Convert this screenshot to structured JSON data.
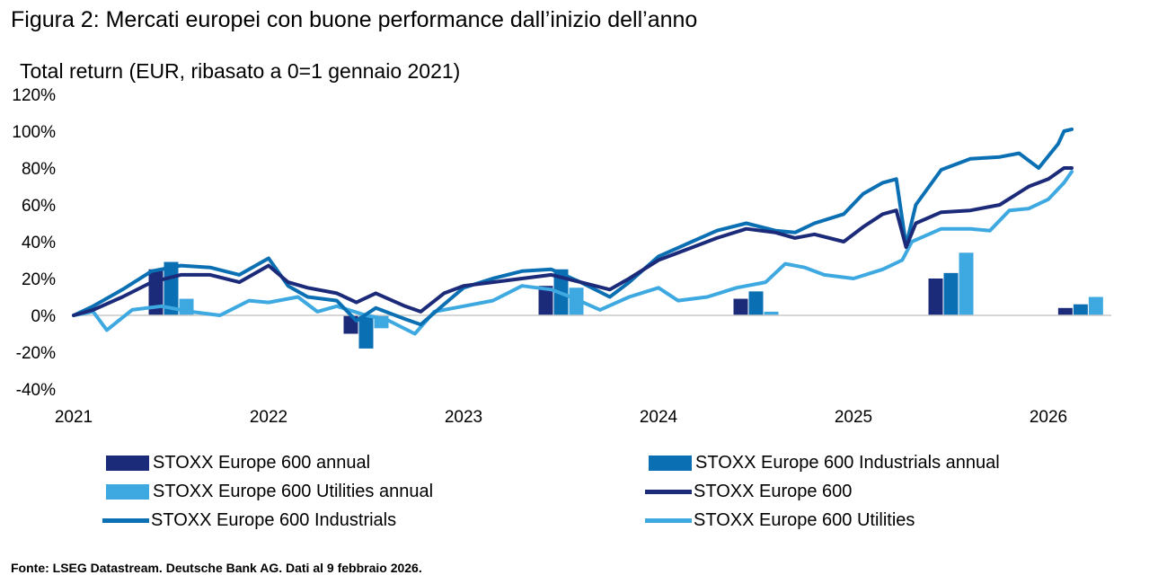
{
  "header": {
    "title": "Figura 2: Mercati europei con buone performance dall’inizio dell’anno",
    "subtitle": "Total return (EUR, ribasato a 0=1 gennaio 2021)"
  },
  "source": "Fonte: LSEG Datastream. Deutsche Bank AG. Dati al 9 febbraio 2026.",
  "colors": {
    "stoxx600": "#1c2a7a",
    "industrials": "#0a6fb3",
    "utilities": "#3ea9e1",
    "axis": "#c8c8c8"
  },
  "chart_data": {
    "type": "line",
    "ylim": [
      -40,
      120
    ],
    "y_ticks": [
      {
        "value": 120,
        "label": "120%"
      },
      {
        "value": 100,
        "label": "100%"
      },
      {
        "value": 80,
        "label": "80%"
      },
      {
        "value": 60,
        "label": "60%"
      },
      {
        "value": 40,
        "label": "40%"
      },
      {
        "value": 20,
        "label": "20%"
      },
      {
        "value": 0,
        "label": "0%"
      },
      {
        "value": -20,
        "label": "-20%"
      },
      {
        "value": -40,
        "label": "-40%"
      }
    ],
    "x_ticks": [
      {
        "value": 2021,
        "label": "2021"
      },
      {
        "value": 2022,
        "label": "2022"
      },
      {
        "value": 2023,
        "label": "2023"
      },
      {
        "value": 2024,
        "label": "2024"
      },
      {
        "value": 2025,
        "label": "2025"
      },
      {
        "value": 2026,
        "label": "2026"
      }
    ],
    "xlim": [
      2021,
      2026.35
    ],
    "bar_series": [
      {
        "name": "STOXX Europe 600 annual",
        "color_key": "stoxx600",
        "values": [
          {
            "year": 2021,
            "value": 25
          },
          {
            "year": 2022,
            "value": -10
          },
          {
            "year": 2023,
            "value": 16
          },
          {
            "year": 2024,
            "value": 9
          },
          {
            "year": 2025,
            "value": 20
          },
          {
            "year": 2026,
            "value": 4
          }
        ]
      },
      {
        "name": "STOXX Europe 600 Industrials annual",
        "color_key": "industrials",
        "values": [
          {
            "year": 2021,
            "value": 29
          },
          {
            "year": 2022,
            "value": -18
          },
          {
            "year": 2023,
            "value": 25
          },
          {
            "year": 2024,
            "value": 13
          },
          {
            "year": 2025,
            "value": 23
          },
          {
            "year": 2026,
            "value": 6
          }
        ]
      },
      {
        "name": "STOXX Europe 600 Utilities annual",
        "color_key": "utilities",
        "values": [
          {
            "year": 2021,
            "value": 9
          },
          {
            "year": 2022,
            "value": -7
          },
          {
            "year": 2023,
            "value": 15
          },
          {
            "year": 2024,
            "value": 2
          },
          {
            "year": 2025,
            "value": 34
          },
          {
            "year": 2026,
            "value": 10
          }
        ]
      }
    ],
    "line_series": [
      {
        "name": "STOXX Europe 600",
        "color_key": "stoxx600",
        "points": [
          [
            2021.0,
            0
          ],
          [
            2021.1,
            3
          ],
          [
            2021.25,
            10
          ],
          [
            2021.4,
            18
          ],
          [
            2021.55,
            22
          ],
          [
            2021.7,
            22
          ],
          [
            2021.85,
            18
          ],
          [
            2022.0,
            27
          ],
          [
            2022.1,
            18
          ],
          [
            2022.2,
            15
          ],
          [
            2022.35,
            12
          ],
          [
            2022.45,
            7
          ],
          [
            2022.55,
            12
          ],
          [
            2022.7,
            5
          ],
          [
            2022.78,
            2
          ],
          [
            2022.9,
            12
          ],
          [
            2023.0,
            16
          ],
          [
            2023.15,
            18
          ],
          [
            2023.3,
            20
          ],
          [
            2023.45,
            22
          ],
          [
            2023.6,
            18
          ],
          [
            2023.75,
            14
          ],
          [
            2023.85,
            20
          ],
          [
            2024.0,
            30
          ],
          [
            2024.15,
            36
          ],
          [
            2024.3,
            42
          ],
          [
            2024.45,
            47
          ],
          [
            2024.6,
            45
          ],
          [
            2024.7,
            42
          ],
          [
            2024.8,
            44
          ],
          [
            2024.95,
            40
          ],
          [
            2025.05,
            48
          ],
          [
            2025.15,
            55
          ],
          [
            2025.22,
            57
          ],
          [
            2025.27,
            37
          ],
          [
            2025.32,
            50
          ],
          [
            2025.45,
            56
          ],
          [
            2025.6,
            57
          ],
          [
            2025.75,
            60
          ],
          [
            2025.9,
            70
          ],
          [
            2026.0,
            74
          ],
          [
            2026.08,
            80
          ],
          [
            2026.12,
            80
          ]
        ]
      },
      {
        "name": "STOXX Europe 600 Industrials",
        "color_key": "industrials",
        "points": [
          [
            2021.0,
            0
          ],
          [
            2021.1,
            5
          ],
          [
            2021.25,
            14
          ],
          [
            2021.4,
            24
          ],
          [
            2021.55,
            27
          ],
          [
            2021.7,
            26
          ],
          [
            2021.85,
            22
          ],
          [
            2022.0,
            31
          ],
          [
            2022.1,
            16
          ],
          [
            2022.2,
            10
          ],
          [
            2022.35,
            8
          ],
          [
            2022.45,
            -3
          ],
          [
            2022.55,
            4
          ],
          [
            2022.7,
            -2
          ],
          [
            2022.78,
            -5
          ],
          [
            2022.9,
            6
          ],
          [
            2023.0,
            15
          ],
          [
            2023.15,
            20
          ],
          [
            2023.3,
            24
          ],
          [
            2023.45,
            25
          ],
          [
            2023.6,
            18
          ],
          [
            2023.75,
            10
          ],
          [
            2023.85,
            18
          ],
          [
            2024.0,
            32
          ],
          [
            2024.15,
            39
          ],
          [
            2024.3,
            46
          ],
          [
            2024.45,
            50
          ],
          [
            2024.6,
            46
          ],
          [
            2024.7,
            45
          ],
          [
            2024.8,
            50
          ],
          [
            2024.95,
            55
          ],
          [
            2025.05,
            66
          ],
          [
            2025.15,
            72
          ],
          [
            2025.22,
            74
          ],
          [
            2025.27,
            38
          ],
          [
            2025.32,
            60
          ],
          [
            2025.45,
            79
          ],
          [
            2025.6,
            85
          ],
          [
            2025.75,
            86
          ],
          [
            2025.85,
            88
          ],
          [
            2025.95,
            80
          ],
          [
            2026.05,
            93
          ],
          [
            2026.08,
            100
          ],
          [
            2026.12,
            101
          ]
        ]
      },
      {
        "name": "STOXX Europe 600 Utilities",
        "color_key": "utilities",
        "points": [
          [
            2021.0,
            0
          ],
          [
            2021.1,
            2
          ],
          [
            2021.17,
            -8
          ],
          [
            2021.3,
            3
          ],
          [
            2021.45,
            5
          ],
          [
            2021.6,
            2
          ],
          [
            2021.75,
            0
          ],
          [
            2021.9,
            8
          ],
          [
            2022.0,
            7
          ],
          [
            2022.15,
            10
          ],
          [
            2022.25,
            2
          ],
          [
            2022.35,
            5
          ],
          [
            2022.5,
            0
          ],
          [
            2022.6,
            -2
          ],
          [
            2022.75,
            -10
          ],
          [
            2022.85,
            2
          ],
          [
            2023.0,
            5
          ],
          [
            2023.15,
            8
          ],
          [
            2023.3,
            16
          ],
          [
            2023.45,
            14
          ],
          [
            2023.55,
            10
          ],
          [
            2023.7,
            3
          ],
          [
            2023.85,
            10
          ],
          [
            2024.0,
            15
          ],
          [
            2024.1,
            8
          ],
          [
            2024.25,
            10
          ],
          [
            2024.4,
            15
          ],
          [
            2024.55,
            18
          ],
          [
            2024.65,
            28
          ],
          [
            2024.75,
            26
          ],
          [
            2024.85,
            22
          ],
          [
            2025.0,
            20
          ],
          [
            2025.15,
            25
          ],
          [
            2025.25,
            30
          ],
          [
            2025.3,
            40
          ],
          [
            2025.45,
            47
          ],
          [
            2025.6,
            47
          ],
          [
            2025.7,
            46
          ],
          [
            2025.8,
            57
          ],
          [
            2025.9,
            58
          ],
          [
            2026.0,
            63
          ],
          [
            2026.08,
            72
          ],
          [
            2026.12,
            78
          ]
        ]
      }
    ],
    "legend": [
      {
        "label": "STOXX Europe 600 annual",
        "kind": "bar",
        "color_key": "stoxx600"
      },
      {
        "label": "STOXX Europe 600 Industrials annual",
        "kind": "bar",
        "color_key": "industrials"
      },
      {
        "label": "STOXX Europe 600 Utilities annual",
        "kind": "bar",
        "color_key": "utilities"
      },
      {
        "label": "STOXX Europe 600",
        "kind": "line",
        "color_key": "stoxx600"
      },
      {
        "label": "STOXX Europe 600 Industrials",
        "kind": "line",
        "color_key": "industrials"
      },
      {
        "label": "STOXX Europe 600 Utilities",
        "kind": "line",
        "color_key": "utilities"
      }
    ],
    "legend_placement": "bottom",
    "grid": false
  }
}
